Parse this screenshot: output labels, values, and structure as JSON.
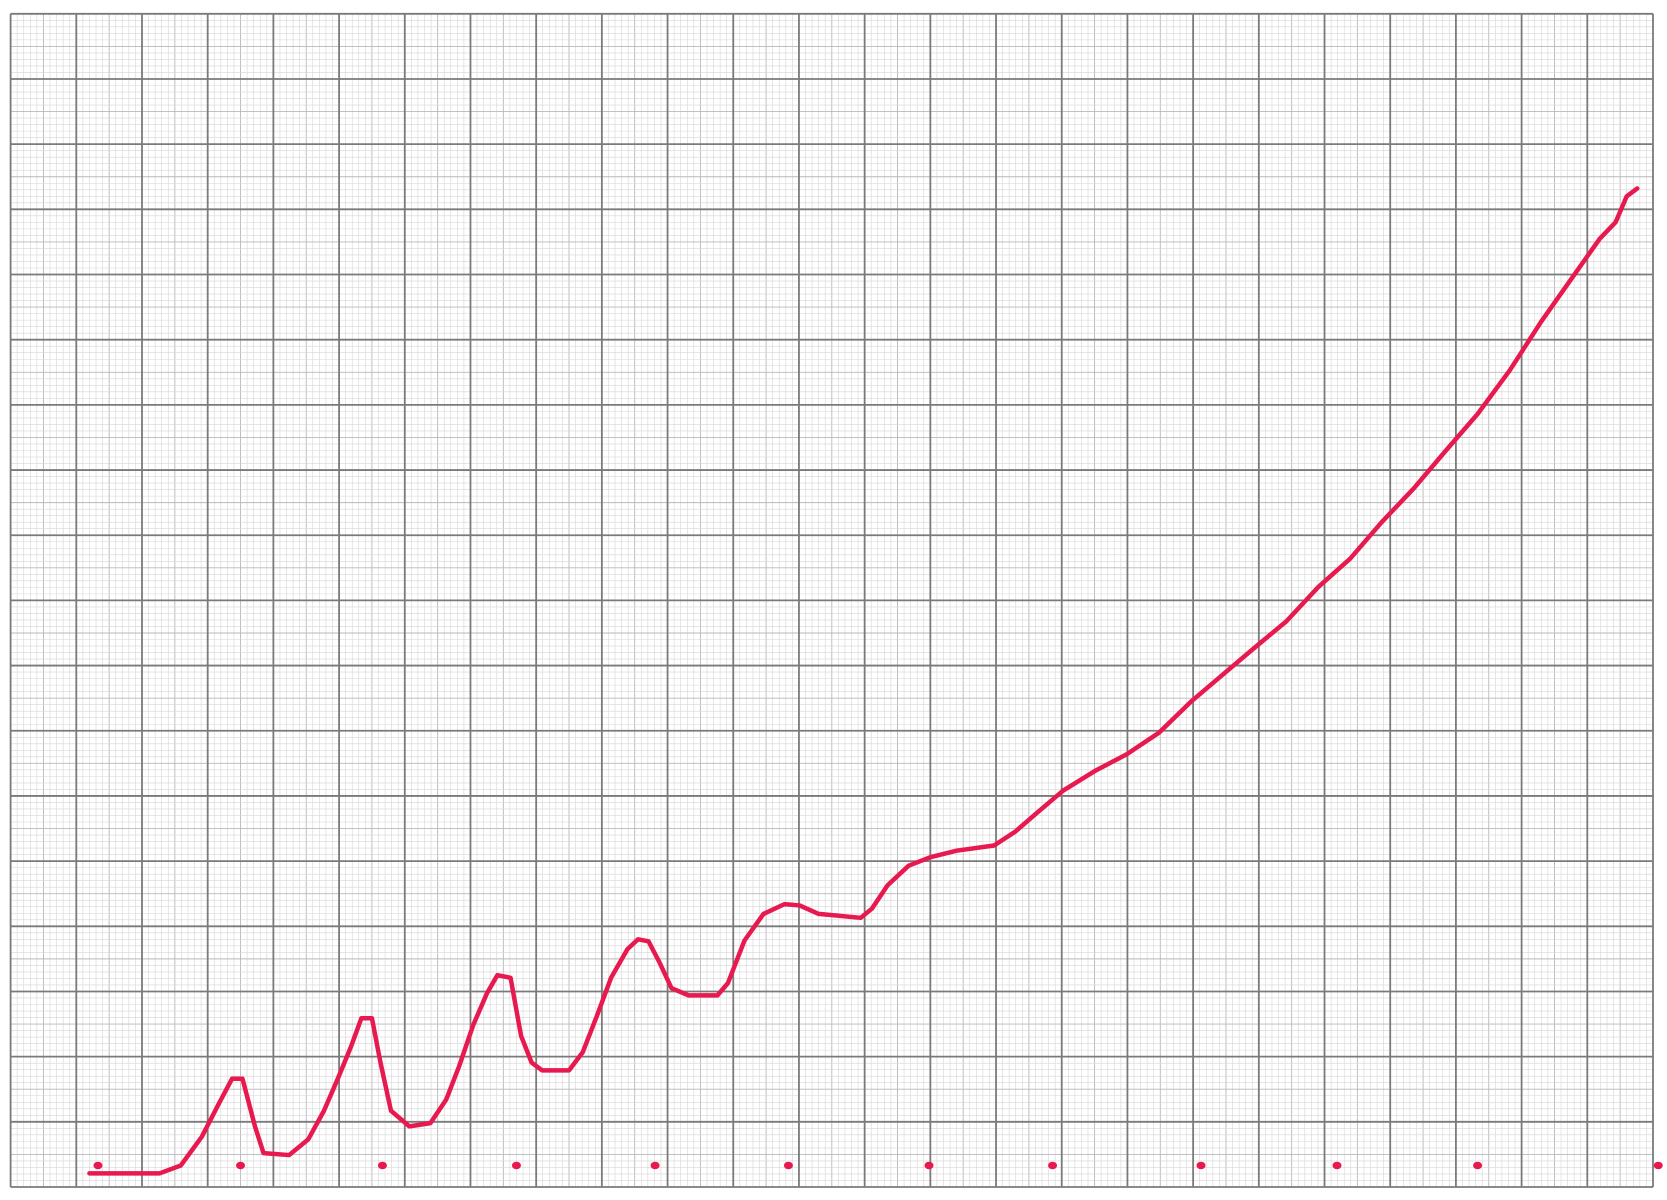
{
  "chart_data": [
    {
      "type": "line",
      "color": "#e8194f",
      "grid": true,
      "xlim": [
        0,
        25
      ],
      "ylim": [
        0,
        18
      ],
      "x": [
        1.2,
        2.27,
        2.59,
        2.91,
        3.16,
        3.37,
        3.53,
        3.72,
        3.85,
        4.24,
        4.53,
        4.77,
        4.98,
        5.18,
        5.34,
        5.5,
        5.63,
        5.79,
        6.07,
        6.39,
        6.63,
        6.83,
        7.04,
        7.25,
        7.41,
        7.61,
        7.77,
        7.93,
        8.09,
        8.5,
        8.71,
        8.93,
        9.14,
        9.39,
        9.55,
        9.71,
        9.87,
        10.06,
        10.32,
        10.76,
        10.92,
        11.17,
        11.46,
        11.78,
        12.01,
        12.3,
        12.94,
        13.11,
        13.35,
        13.67,
        14.0,
        14.4,
        14.97,
        15.29,
        15.61,
        16.02,
        16.5,
        16.99,
        17.48,
        17.96,
        18.45,
        18.93,
        19.42,
        19.9,
        20.39,
        20.87,
        21.36,
        21.84,
        22.33,
        22.82,
        23.3,
        23.79,
        24.19,
        24.43,
        24.6,
        24.76
      ],
      "values": [
        0.21,
        0.21,
        0.33,
        0.77,
        1.26,
        1.66,
        1.66,
        0.93,
        0.52,
        0.49,
        0.73,
        1.17,
        1.66,
        2.15,
        2.59,
        2.59,
        1.91,
        1.17,
        0.93,
        0.98,
        1.34,
        1.86,
        2.48,
        2.97,
        3.25,
        3.21,
        2.32,
        1.91,
        1.79,
        1.79,
        2.07,
        2.64,
        3.21,
        3.65,
        3.8,
        3.77,
        3.46,
        3.05,
        2.94,
        2.94,
        3.13,
        3.78,
        4.19,
        4.34,
        4.32,
        4.19,
        4.13,
        4.27,
        4.63,
        4.93,
        5.06,
        5.16,
        5.24,
        5.45,
        5.73,
        6.08,
        6.38,
        6.64,
        6.97,
        7.44,
        7.86,
        8.27,
        8.68,
        9.2,
        9.64,
        10.2,
        10.72,
        11.29,
        11.86,
        12.53,
        13.28,
        13.98,
        14.55,
        14.8,
        15.2,
        15.32
      ]
    },
    {
      "type": "scatter",
      "color": "#e8194f",
      "xlim": [
        0,
        25
      ],
      "ylim": [
        0,
        18
      ],
      "x": [
        1.33,
        3.5,
        5.66,
        7.7,
        9.81,
        11.84,
        13.98,
        15.86,
        18.12,
        20.19,
        22.33,
        25.08
      ],
      "values": [
        0.33,
        0.33,
        0.33,
        0.33,
        0.33,
        0.33,
        0.33,
        0.33,
        0.33,
        0.33,
        0.33,
        0.33
      ]
    }
  ]
}
